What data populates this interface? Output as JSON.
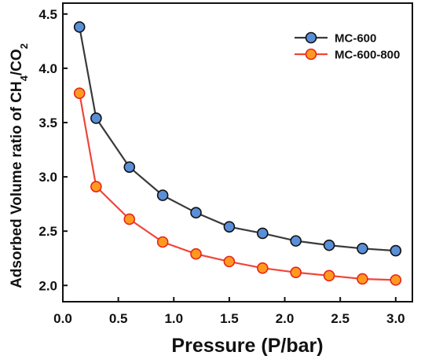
{
  "chart_data": {
    "type": "line",
    "title": "",
    "xlabel": "Pressure (P/bar)",
    "ylabel": {
      "main": "Adsorbed Volume ratio of  CH",
      "sub1": "4",
      "mid": "/CO",
      "sub2": "2"
    },
    "xlim": [
      0.0,
      3.15
    ],
    "ylim": [
      1.85,
      4.6
    ],
    "xticks": [
      "0.0",
      "0.5",
      "1.0",
      "1.5",
      "2.0",
      "2.5",
      "3.0"
    ],
    "yticks": [
      "2.0",
      "2.5",
      "3.0",
      "3.5",
      "4.0",
      "4.5"
    ],
    "legend_position": "top-right",
    "series": [
      {
        "name": "MC-600",
        "color": "#3a3a3a",
        "marker_color": "#5a8fd8",
        "x": [
          0.15,
          0.3,
          0.6,
          0.9,
          1.2,
          1.5,
          1.8,
          2.1,
          2.4,
          2.7,
          3.0
        ],
        "y": [
          4.38,
          3.54,
          3.09,
          2.83,
          2.67,
          2.54,
          2.48,
          2.41,
          2.37,
          2.34,
          2.32
        ]
      },
      {
        "name": "MC-600-800",
        "color": "#f0453a",
        "marker_color": "#ff9a1f",
        "x": [
          0.15,
          0.3,
          0.6,
          0.9,
          1.2,
          1.5,
          1.8,
          2.1,
          2.4,
          2.7,
          3.0
        ],
        "y": [
          3.77,
          2.91,
          2.61,
          2.4,
          2.29,
          2.22,
          2.16,
          2.12,
          2.09,
          2.06,
          2.05
        ]
      }
    ]
  }
}
